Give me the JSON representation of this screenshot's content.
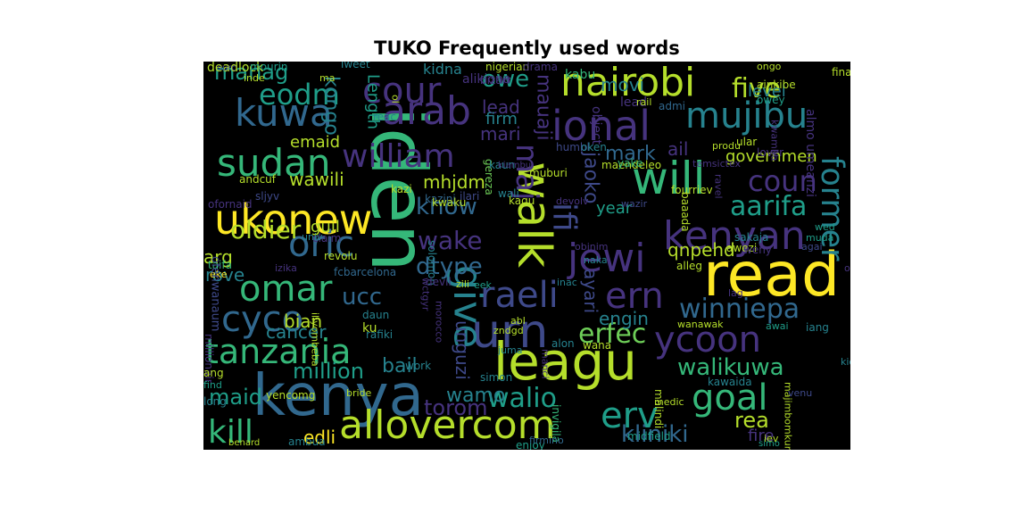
{
  "chart_data": {
    "type": "wordcloud",
    "title": "TUKO Frequently used words",
    "background": "#000000",
    "palette": {
      "p": "#46337e",
      "d": "#3e4989",
      "b": "#31688e",
      "t": "#26828e",
      "c": "#1f9e89",
      "g": "#35b779",
      "l": "#6ece58",
      "y": "#b5de2b",
      "Y": "#fde725"
    },
    "words": [
      {
        "text": "iden",
        "orientation": "vertical",
        "color": "g"
      },
      {
        "text": "read",
        "orientation": "horizontal",
        "color": "Y"
      },
      {
        "text": "leagu",
        "orientation": "horizontal",
        "color": "y"
      },
      {
        "text": "kenya",
        "orientation": "horizontal",
        "color": "b"
      },
      {
        "text": "walk",
        "orientation": "vertical",
        "color": "y"
      },
      {
        "text": "jewi",
        "orientation": "horizontal",
        "color": "p"
      },
      {
        "text": "allovercom",
        "orientation": "horizontal",
        "color": "y"
      },
      {
        "text": "arab",
        "orientation": "horizontal",
        "color": "p"
      },
      {
        "text": "nairobi",
        "orientation": "horizontal",
        "color": "y"
      },
      {
        "text": "ukonew",
        "orientation": "horizontal",
        "color": "Y"
      },
      {
        "text": "urn",
        "orientation": "horizontal",
        "color": "d"
      },
      {
        "text": "give",
        "orientation": "vertical",
        "color": "t"
      },
      {
        "text": "ional",
        "orientation": "horizontal",
        "color": "p"
      },
      {
        "text": "will",
        "orientation": "horizontal",
        "color": "g"
      },
      {
        "text": "kenyan",
        "orientation": "horizontal",
        "color": "p"
      },
      {
        "text": "mujibu",
        "orientation": "horizontal",
        "color": "t"
      },
      {
        "text": "sudan",
        "orientation": "horizontal",
        "color": "g"
      },
      {
        "text": "william",
        "orientation": "horizontal",
        "color": "p"
      },
      {
        "text": "cour",
        "orientation": "horizontal",
        "color": "p"
      },
      {
        "text": "kuwa",
        "orientation": "horizontal",
        "color": "b"
      },
      {
        "text": "omar",
        "orientation": "horizontal",
        "color": "g"
      },
      {
        "text": "oric",
        "orientation": "horizontal",
        "color": "b"
      },
      {
        "text": "cyco",
        "orientation": "horizontal",
        "color": "b"
      },
      {
        "text": "raeli",
        "orientation": "horizontal",
        "color": "d"
      },
      {
        "text": "ern",
        "orientation": "horizontal",
        "color": "p"
      },
      {
        "text": "ycoon",
        "orientation": "horizontal",
        "color": "p"
      },
      {
        "text": "tanzania",
        "orientation": "horizontal",
        "color": "g"
      },
      {
        "text": "goal",
        "orientation": "horizontal",
        "color": "g"
      },
      {
        "text": "erv",
        "orientation": "horizontal",
        "color": "c"
      },
      {
        "text": "former",
        "orientation": "vertical",
        "color": "t"
      },
      {
        "text": "kill",
        "orientation": "horizontal",
        "color": "g"
      },
      {
        "text": "eodm",
        "orientation": "horizontal",
        "color": "c"
      },
      {
        "text": "coun",
        "orientation": "horizontal",
        "color": "p"
      },
      {
        "text": "ifi",
        "orientation": "vertical",
        "color": "d"
      },
      {
        "text": "five",
        "orientation": "horizontal",
        "color": "y"
      },
      {
        "text": "aarifa",
        "orientation": "horizontal",
        "color": "c"
      },
      {
        "text": "winniepa",
        "orientation": "horizontal",
        "color": "b"
      },
      {
        "text": "walikuwa",
        "orientation": "horizontal",
        "color": "g"
      },
      {
        "text": "kliniki",
        "orientation": "horizontal",
        "color": "b"
      },
      {
        "text": "erfec",
        "orientation": "horizontal",
        "color": "l"
      },
      {
        "text": "walio",
        "orientation": "horizontal",
        "color": "c"
      },
      {
        "text": "wake",
        "orientation": "horizontal",
        "color": "p"
      },
      {
        "text": "maj",
        "orientation": "vertical",
        "color": "p"
      },
      {
        "text": "dtype",
        "orientation": "horizontal",
        "color": "b"
      },
      {
        "text": "know",
        "orientation": "horizontal",
        "color": "b"
      },
      {
        "text": "oldier",
        "orientation": "horizontal",
        "color": "y"
      },
      {
        "text": "owe",
        "orientation": "horizontal",
        "color": "c"
      },
      {
        "text": "mauaji",
        "orientation": "vertical",
        "color": "p"
      },
      {
        "text": "jaoko",
        "orientation": "vertical",
        "color": "d"
      },
      {
        "text": "rea",
        "orientation": "horizontal",
        "color": "y"
      },
      {
        "text": "million",
        "orientation": "horizontal",
        "color": "c"
      },
      {
        "text": "maid",
        "orientation": "horizontal",
        "color": "c"
      },
      {
        "text": "wamo",
        "orientation": "horizontal",
        "color": "t"
      },
      {
        "text": "torom",
        "orientation": "horizontal",
        "color": "p"
      },
      {
        "text": "engin",
        "orientation": "horizontal",
        "color": "t"
      },
      {
        "text": "ucc",
        "orientation": "horizontal",
        "color": "b"
      },
      {
        "text": "unguzi",
        "orientation": "vertical",
        "color": "d"
      },
      {
        "text": "ayari",
        "orientation": "vertical",
        "color": "d"
      },
      {
        "text": "bail",
        "orientation": "horizontal",
        "color": "t"
      },
      {
        "text": "emaid",
        "orientation": "horizontal",
        "color": "y"
      },
      {
        "text": "mhjdm",
        "orientation": "horizontal",
        "color": "y"
      },
      {
        "text": "wawili",
        "orientation": "horizontal",
        "color": "y"
      },
      {
        "text": "kongo",
        "orientation": "vertical",
        "color": "t"
      },
      {
        "text": "mark",
        "orientation": "horizontal",
        "color": "b"
      },
      {
        "text": "lead",
        "orientation": "horizontal",
        "color": "p"
      },
      {
        "text": "firm",
        "orientation": "horizontal",
        "color": "t"
      },
      {
        "text": "mari",
        "orientation": "horizontal",
        "color": "p"
      },
      {
        "text": "movi",
        "orientation": "horizontal",
        "color": "t"
      },
      {
        "text": "ail",
        "orientation": "horizontal",
        "color": "p"
      },
      {
        "text": "governmen",
        "orientation": "horizontal",
        "color": "y"
      },
      {
        "text": "level",
        "orientation": "horizontal",
        "color": "t"
      },
      {
        "text": "year",
        "orientation": "horizontal",
        "color": "c"
      },
      {
        "text": "qnpehd",
        "orientation": "horizontal",
        "color": "y"
      },
      {
        "text": "edli",
        "orientation": "horizontal",
        "color": "Y"
      },
      {
        "text": "fire",
        "orientation": "horizontal",
        "color": "p"
      },
      {
        "text": "cancer",
        "orientation": "horizontal",
        "color": "t"
      },
      {
        "text": "bian",
        "orientation": "horizontal",
        "color": "y"
      },
      {
        "text": "guil",
        "orientation": "horizontal",
        "color": "y"
      },
      {
        "text": "rove",
        "orientation": "horizontal",
        "color": "t"
      },
      {
        "text": "arg",
        "orientation": "horizontal",
        "color": "y"
      },
      {
        "text": "manag",
        "orientation": "horizontal",
        "color": "c"
      },
      {
        "text": "Length",
        "orientation": "vertical",
        "color": "c"
      },
      {
        "text": "kidna",
        "orientation": "horizontal",
        "color": "t"
      },
      {
        "text": "nigerian",
        "orientation": "horizontal",
        "color": "y"
      },
      {
        "text": "drama",
        "orientation": "horizontal",
        "color": "p"
      },
      {
        "text": "deadlock",
        "orientation": "horizontal",
        "color": "y"
      },
      {
        "text": "mourin",
        "orientation": "horizontal",
        "color": "c"
      },
      {
        "text": "Tweet",
        "orientation": "horizontal",
        "color": "t"
      },
      {
        "text": "ongo",
        "orientation": "horizontal",
        "color": "y"
      },
      {
        "text": "bizarr",
        "orientation": "horizontal",
        "color": "p"
      },
      {
        "text": "alikiona",
        "orientation": "horizontal",
        "color": "p"
      },
      {
        "text": "object",
        "orientation": "vertical",
        "color": "p"
      },
      {
        "text": "lead",
        "orientation": "horizontal",
        "color": "p"
      },
      {
        "text": "owey",
        "orientation": "horizontal",
        "color": "c"
      },
      {
        "text": "final",
        "orientation": "horizontal",
        "color": "y"
      },
      {
        "text": "almo umeanzi",
        "orientation": "vertical",
        "color": "p"
      },
      {
        "text": "rail",
        "orientation": "horizontal",
        "color": "y"
      },
      {
        "text": "admi",
        "orientation": "horizontal",
        "color": "b"
      },
      {
        "text": "ainkibe",
        "orientation": "horizontal",
        "color": "y"
      },
      {
        "text": "kwamba",
        "orientation": "vertical",
        "color": "p"
      },
      {
        "text": "humbl",
        "orientation": "horizontal",
        "color": "d"
      },
      {
        "text": "oken",
        "orientation": "horizontal",
        "color": "t"
      },
      {
        "text": "kabu",
        "orientation": "horizontal",
        "color": "g"
      },
      {
        "text": "gereza",
        "orientation": "vertical",
        "color": "l"
      },
      {
        "text": "produ",
        "orientation": "horizontal",
        "color": "y"
      },
      {
        "text": "ular",
        "orientation": "horizontal",
        "color": "y"
      },
      {
        "text": "lover",
        "orientation": "horizontal",
        "color": "p"
      },
      {
        "text": "maendeleo",
        "orientation": "horizontal",
        "color": "y"
      },
      {
        "text": "yake",
        "orientation": "horizontal",
        "color": "g"
      },
      {
        "text": "kaun",
        "orientation": "horizontal",
        "color": "t"
      },
      {
        "text": "muburi",
        "orientation": "horizontal",
        "color": "y"
      },
      {
        "text": "andcuf",
        "orientation": "horizontal",
        "color": "y"
      },
      {
        "text": "sljyv",
        "orientation": "horizontal",
        "color": "d"
      },
      {
        "text": "ilari",
        "orientation": "horizontal",
        "color": "d"
      },
      {
        "text": "kazi",
        "orientation": "horizontal",
        "color": "y"
      },
      {
        "text": "kazini",
        "orientation": "horizontal",
        "color": "b"
      },
      {
        "text": "kwaku",
        "orientation": "horizontal",
        "color": "y"
      },
      {
        "text": "wali",
        "orientation": "horizontal",
        "color": "t"
      },
      {
        "text": "devolv",
        "orientation": "horizontal",
        "color": "p"
      },
      {
        "text": "wazir",
        "orientation": "horizontal",
        "color": "d"
      },
      {
        "text": "fourriev",
        "orientation": "horizontal",
        "color": "y"
      },
      {
        "text": "wed",
        "orientation": "horizontal",
        "color": "c"
      },
      {
        "text": "muda",
        "orientation": "horizontal",
        "color": "c"
      },
      {
        "text": "agai",
        "orientation": "horizontal",
        "color": "d"
      },
      {
        "text": "awezi",
        "orientation": "horizontal",
        "color": "y"
      },
      {
        "text": "alleg",
        "orientation": "horizontal",
        "color": "y"
      },
      {
        "text": "sakaja",
        "orientation": "horizontal",
        "color": "t"
      },
      {
        "text": "weny",
        "orientation": "horizontal",
        "color": "p"
      },
      {
        "text": "obinim",
        "orientation": "horizontal",
        "color": "p"
      },
      {
        "text": "naka",
        "orientation": "horizontal",
        "color": "t"
      },
      {
        "text": "kagu",
        "orientation": "horizontal",
        "color": "y"
      },
      {
        "text": "solomon",
        "orientation": "vertical",
        "color": "t"
      },
      {
        "text": "claim",
        "orientation": "horizontal",
        "color": "p"
      },
      {
        "text": "revolu",
        "orientation": "horizontal",
        "color": "y"
      },
      {
        "text": "taifa",
        "orientation": "horizontal",
        "color": "g"
      },
      {
        "text": "izika",
        "orientation": "horizontal",
        "color": "p"
      },
      {
        "text": "fcbarcelona",
        "orientation": "horizontal",
        "color": "b"
      },
      {
        "text": "devil",
        "orientation": "horizontal",
        "color": "p"
      },
      {
        "text": "zili",
        "orientation": "horizontal",
        "color": "y"
      },
      {
        "text": "eek",
        "orientation": "horizontal",
        "color": "c"
      },
      {
        "text": "inac",
        "orientation": "horizontal",
        "color": "t"
      },
      {
        "text": "eke",
        "orientation": "horizontal",
        "color": "Y"
      },
      {
        "text": "wctgyr",
        "orientation": "vertical",
        "color": "p"
      },
      {
        "text": "morocco",
        "orientation": "vertical",
        "color": "p"
      },
      {
        "text": "iliyombeba",
        "orientation": "vertical",
        "color": "y"
      },
      {
        "text": "daun",
        "orientation": "horizontal",
        "color": "t"
      },
      {
        "text": "wanawak",
        "orientation": "horizontal",
        "color": "y"
      },
      {
        "text": "officialgmfc",
        "orientation": "horizontal",
        "color": "p"
      },
      {
        "text": "millionair",
        "orientation": "vertical",
        "color": "p"
      },
      {
        "text": "rafiki",
        "orientation": "horizontal",
        "color": "t"
      },
      {
        "text": "ku",
        "orientation": "horizontal",
        "color": "y"
      },
      {
        "text": "zndgd",
        "orientation": "horizontal",
        "color": "y"
      },
      {
        "text": "alon",
        "orientation": "horizontal",
        "color": "t"
      },
      {
        "text": "wana",
        "orientation": "horizontal",
        "color": "y"
      },
      {
        "text": "awai",
        "orientation": "horizontal",
        "color": "c"
      },
      {
        "text": "iang",
        "orientation": "horizontal",
        "color": "t"
      },
      {
        "text": "abl",
        "orientation": "horizontal",
        "color": "y"
      },
      {
        "text": "manci",
        "orientation": "vertical",
        "color": "p"
      },
      {
        "text": "juma",
        "orientation": "horizontal",
        "color": "t"
      },
      {
        "text": "ang",
        "orientation": "horizontal",
        "color": "y"
      },
      {
        "text": "yencomg",
        "orientation": "horizontal",
        "color": "y"
      },
      {
        "text": "find",
        "orientation": "horizontal",
        "color": "c"
      },
      {
        "text": "simon",
        "orientation": "horizontal",
        "color": "t"
      },
      {
        "text": "work",
        "orientation": "horizontal",
        "color": "t"
      },
      {
        "text": "malindi",
        "orientation": "vertical",
        "color": "y"
      },
      {
        "text": "medic",
        "orientation": "horizontal",
        "color": "y"
      },
      {
        "text": "kawaida",
        "orientation": "horizontal",
        "color": "t"
      },
      {
        "text": "kiongozi",
        "orientation": "horizontal",
        "color": "t"
      },
      {
        "text": "majimbomkurugenzi",
        "orientation": "vertical",
        "color": "y"
      },
      {
        "text": "venu",
        "orientation": "horizontal",
        "color": "d"
      },
      {
        "text": "long",
        "orientation": "horizontal",
        "color": "t"
      },
      {
        "text": "ambua",
        "orientation": "horizontal",
        "color": "t"
      },
      {
        "text": "bride",
        "orientation": "horizontal",
        "color": "y"
      },
      {
        "text": "invigila",
        "orientation": "vertical",
        "color": "g"
      },
      {
        "text": "enjoy",
        "orientation": "horizontal",
        "color": "c"
      },
      {
        "text": "midfield",
        "orientation": "horizontal",
        "color": "c"
      },
      {
        "text": "iev",
        "orientation": "horizontal",
        "color": "y"
      },
      {
        "text": "simo",
        "orientation": "horizontal",
        "color": "c"
      },
      {
        "text": "benard",
        "orientation": "horizontal",
        "color": "y"
      },
      {
        "text": "firmino",
        "orientation": "horizontal",
        "color": "b"
      },
      {
        "text": "ourc",
        "orientation": "horizontal",
        "color": "d"
      },
      {
        "text": "ofenwanaum",
        "orientation": "vertical",
        "color": "d"
      },
      {
        "text": "ofornaid",
        "orientation": "horizontal",
        "color": "p"
      },
      {
        "text": "inde",
        "orientation": "horizontal",
        "color": "y"
      },
      {
        "text": "ma",
        "orientation": "horizontal",
        "color": "y"
      },
      {
        "text": "reac",
        "orientation": "horizontal",
        "color": "t"
      },
      {
        "text": "ol",
        "orientation": "vertical",
        "color": "y"
      },
      {
        "text": "temsictex",
        "orientation": "horizontal",
        "color": "p"
      },
      {
        "text": "ravel",
        "orientation": "vertical",
        "color": "p"
      },
      {
        "text": "baaada",
        "orientation": "vertical",
        "color": "y"
      },
      {
        "text": "lag",
        "orientation": "horizontal",
        "color": "p"
      },
      {
        "text": "univ",
        "orientation": "horizontal",
        "color": "t"
      },
      {
        "text": "kiambu",
        "orientation": "horizontal",
        "color": "p"
      },
      {
        "text": "ame",
        "orientation": "horizontal",
        "color": "p"
      }
    ]
  }
}
